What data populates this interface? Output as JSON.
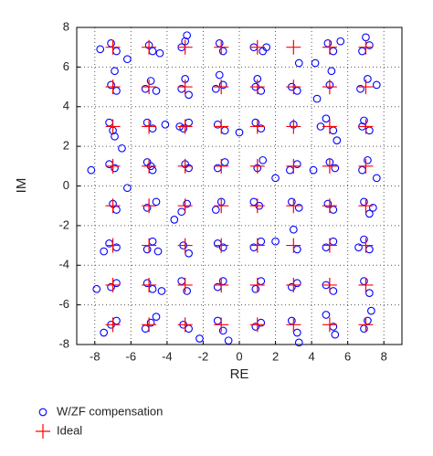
{
  "chart_data": {
    "type": "scatter",
    "xlabel": "RE",
    "ylabel": "IM",
    "xlim": [
      -9,
      9
    ],
    "ylim": [
      -8,
      8
    ],
    "xticks": [
      -8,
      -6,
      -4,
      -2,
      0,
      2,
      4,
      6,
      8
    ],
    "yticks": [
      -8,
      -6,
      -4,
      -2,
      0,
      2,
      4,
      6,
      8
    ],
    "grid": true,
    "legend": "bottom",
    "series": [
      {
        "name": "W/ZF compensation",
        "color": "#0000ff",
        "marker": "o",
        "x": [
          -7.7,
          -7.1,
          -6.8,
          -6.2,
          -5.0,
          -4.8,
          -4.4,
          -3.2,
          -2.9,
          -3.0,
          -1.1,
          -0.9,
          0.8,
          1.3,
          1.5,
          3.3,
          4.2,
          4.9,
          5.2,
          5.6,
          6.8,
          7.2,
          7.0,
          -7.1,
          -6.8,
          -6.9,
          -5.2,
          -4.9,
          -4.6,
          -3.0,
          -3.2,
          -2.8,
          -1.3,
          -0.9,
          -1.1,
          0.9,
          1.2,
          1.0,
          2.9,
          3.2,
          4.3,
          5.0,
          5.1,
          6.7,
          7.1,
          7.6,
          -7.0,
          -7.2,
          -6.9,
          -5.1,
          -4.8,
          -4.1,
          -3.1,
          -2.8,
          -3.3,
          -1.2,
          -0.8,
          0.0,
          0.9,
          1.2,
          3.0,
          4.5,
          4.8,
          5.2,
          5.4,
          6.9,
          7.2,
          6.8,
          -8.2,
          -7.2,
          -6.9,
          -6.5,
          -5.1,
          -4.8,
          -4.9,
          -3.0,
          -2.8,
          -1.2,
          -0.8,
          1.0,
          1.3,
          2.0,
          2.8,
          3.2,
          4.1,
          5.0,
          5.3,
          6.8,
          7.1,
          7.6,
          -7.0,
          -6.8,
          -6.2,
          -5.1,
          -4.6,
          -3.2,
          -2.9,
          -3.6,
          -1.0,
          -1.3,
          1.1,
          0.8,
          2.9,
          3.3,
          4.9,
          5.2,
          6.9,
          7.4,
          7.2,
          -7.2,
          -6.8,
          -7.5,
          -5.1,
          -4.8,
          -4.5,
          -3.1,
          -2.8,
          -1.2,
          -0.9,
          0.8,
          1.2,
          2.0,
          3.0,
          3.2,
          4.8,
          5.2,
          6.9,
          7.2,
          6.6,
          -7.9,
          -7.1,
          -6.8,
          -5.1,
          -4.8,
          -4.3,
          -3.2,
          -2.9,
          -1.2,
          -0.9,
          0.9,
          1.2,
          2.9,
          3.2,
          4.8,
          5.2,
          6.9,
          7.2,
          7.3,
          -7.5,
          -7.1,
          -6.8,
          -5.2,
          -4.9,
          -4.6,
          -3.1,
          -2.8,
          -2.2,
          -1.2,
          -0.9,
          -0.6,
          0.9,
          1.2,
          2.9,
          3.2,
          3.3,
          4.8,
          5.2,
          5.3,
          6.9,
          7.1
        ],
        "values": [
          6.9,
          7.2,
          6.8,
          6.4,
          7.1,
          6.8,
          6.7,
          7.0,
          7.6,
          7.3,
          7.2,
          6.8,
          7.0,
          6.8,
          7.0,
          6.2,
          6.2,
          7.2,
          6.8,
          7.3,
          6.8,
          7.1,
          7.5,
          5.1,
          4.8,
          5.8,
          4.9,
          5.3,
          4.8,
          5.4,
          4.9,
          4.6,
          4.9,
          5.1,
          5.6,
          5.0,
          4.8,
          5.4,
          5.0,
          4.8,
          4.4,
          5.1,
          5.8,
          4.9,
          5.4,
          5.1,
          2.8,
          3.2,
          2.5,
          3.2,
          2.9,
          3.1,
          2.9,
          3.2,
          3.0,
          3.1,
          2.8,
          2.7,
          3.2,
          2.9,
          3.1,
          3.0,
          3.4,
          2.8,
          2.3,
          3.3,
          2.8,
          3.0,
          0.8,
          1.1,
          0.9,
          1.9,
          1.2,
          0.8,
          1.0,
          1.1,
          0.9,
          0.9,
          1.2,
          0.9,
          1.3,
          0.4,
          0.8,
          1.1,
          0.8,
          1.2,
          0.9,
          0.8,
          1.3,
          0.4,
          -0.9,
          -1.2,
          -0.1,
          -1.1,
          -0.8,
          -1.3,
          -0.9,
          -1.7,
          -0.8,
          -1.2,
          -1.0,
          -0.8,
          -0.8,
          -1.1,
          -0.9,
          -1.2,
          -0.8,
          -1.1,
          -1.4,
          -2.9,
          -3.1,
          -3.3,
          -3.2,
          -2.8,
          -3.3,
          -3.0,
          -3.4,
          -2.9,
          -3.1,
          -3.1,
          -2.8,
          -2.8,
          -2.2,
          -3.2,
          -3.1,
          -2.8,
          -2.7,
          -3.2,
          -3.1,
          -5.2,
          -5.1,
          -4.9,
          -4.9,
          -5.2,
          -5.3,
          -4.8,
          -5.3,
          -5.1,
          -4.8,
          -5.2,
          -4.8,
          -5.1,
          -4.9,
          -5.0,
          -5.3,
          -4.8,
          -5.4,
          -6.3,
          -7.4,
          -7.0,
          -6.8,
          -7.2,
          -6.9,
          -6.6,
          -7.0,
          -7.2,
          -7.7,
          -6.8,
          -7.3,
          -7.8,
          -7.1,
          -6.9,
          -6.8,
          -7.4,
          -7.9,
          -6.5,
          -7.1,
          -7.5,
          -7.2,
          -6.8
        ]
      },
      {
        "name": "Ideal",
        "color": "#ff0000",
        "marker": "+",
        "x": [
          -7,
          -5,
          -3,
          -1,
          1,
          3,
          5,
          7,
          -7,
          -5,
          -3,
          -1,
          1,
          3,
          5,
          7,
          -7,
          -5,
          -3,
          -1,
          1,
          3,
          5,
          7,
          -7,
          -5,
          -3,
          -1,
          1,
          3,
          5,
          7,
          -7,
          -5,
          -3,
          -1,
          1,
          3,
          5,
          7,
          -7,
          -5,
          -3,
          -1,
          1,
          3,
          5,
          7,
          -7,
          -5,
          -3,
          -1,
          1,
          3,
          5,
          7,
          -7,
          -5,
          -3,
          -1,
          1,
          3,
          5,
          7
        ],
        "values": [
          7,
          7,
          7,
          7,
          7,
          7,
          7,
          7,
          5,
          5,
          5,
          5,
          5,
          5,
          5,
          5,
          3,
          3,
          3,
          3,
          3,
          3,
          3,
          3,
          1,
          1,
          1,
          1,
          1,
          1,
          1,
          1,
          -1,
          -1,
          -1,
          -1,
          -1,
          -1,
          -1,
          -1,
          -3,
          -3,
          -3,
          -3,
          -3,
          -3,
          -3,
          -3,
          -5,
          -5,
          -5,
          -5,
          -5,
          -5,
          -5,
          -5,
          -7,
          -7,
          -7,
          -7,
          -7,
          -7,
          -7,
          -7
        ]
      }
    ]
  }
}
